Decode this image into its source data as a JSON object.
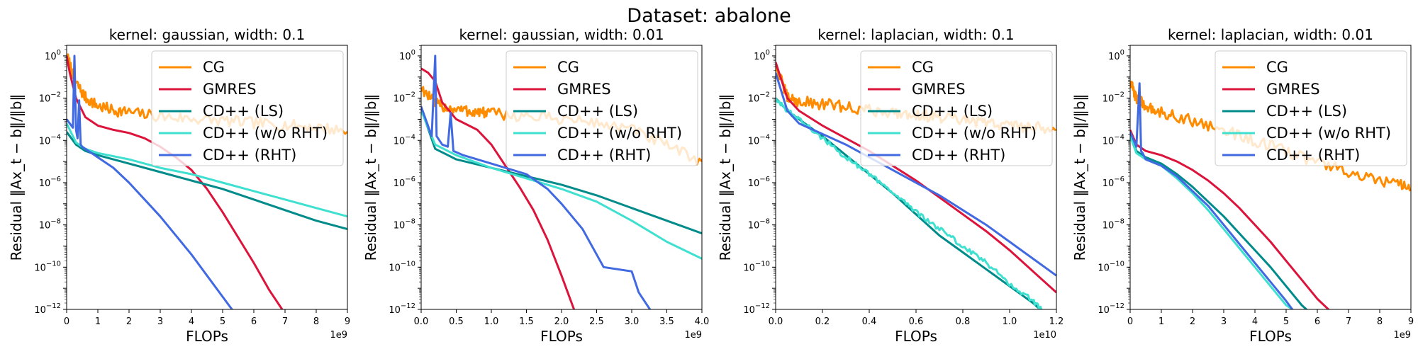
{
  "figure_title": "Dataset: abalone",
  "chart_data": [
    {
      "type": "line",
      "title": "kernel: gaussian, width: 0.1",
      "xlabel": "FLOPs",
      "ylabel": "Residual ‖Ax_t − b‖/‖b‖",
      "x_offset_label": "1e9",
      "yscale": "log",
      "xlim": [
        0,
        9
      ],
      "ylim_exp": [
        -12,
        0.5
      ],
      "x_ticks": [
        "0",
        "1",
        "2",
        "3",
        "4",
        "5",
        "6",
        "7",
        "8",
        "9"
      ],
      "legend": "top-right",
      "series": [
        {
          "name": "CG",
          "color": "#ff8c00",
          "noise": true,
          "x": [
            0,
            0.3,
            0.6,
            1.0,
            1.5,
            2.0,
            3.0,
            4.0,
            5.0,
            6.0,
            7.0,
            8.0,
            9.0
          ],
          "log10_y": [
            0,
            -1.3,
            -2.0,
            -2.4,
            -2.6,
            -2.7,
            -2.9,
            -3.0,
            -3.1,
            -3.2,
            -3.3,
            -3.4,
            -3.6
          ]
        },
        {
          "name": "GMRES",
          "color": "#dc143c",
          "x": [
            0,
            0.1,
            0.3,
            0.6,
            1.0,
            1.5,
            2.0,
            2.5,
            3.0,
            3.5,
            4.0,
            4.5,
            5.0,
            5.5,
            6.0,
            6.5,
            7.0
          ],
          "log10_y": [
            0,
            -0.8,
            -2.0,
            -2.9,
            -3.3,
            -3.5,
            -3.65,
            -3.9,
            -4.3,
            -4.8,
            -5.4,
            -6.3,
            -7.4,
            -8.6,
            -9.8,
            -11.1,
            -12.2
          ]
        },
        {
          "name": "CD++ (LS)",
          "color": "#008b8b",
          "x": [
            0,
            0.3,
            0.6,
            1.0,
            2.0,
            3.0,
            4.0,
            5.0,
            6.0,
            7.0,
            8.0,
            9.0
          ],
          "log10_y": [
            -3.6,
            -4.2,
            -4.5,
            -4.7,
            -5.1,
            -5.5,
            -5.9,
            -6.3,
            -6.8,
            -7.3,
            -7.8,
            -8.2
          ]
        },
        {
          "name": "CD++ (w/o RHT)",
          "color": "#40e0d0",
          "x": [
            0,
            0.3,
            0.6,
            1.0,
            2.0,
            3.0,
            4.0,
            5.0,
            6.0,
            7.0,
            8.0,
            9.0
          ],
          "log10_y": [
            -3.2,
            -4.1,
            -4.4,
            -4.6,
            -4.9,
            -5.3,
            -5.6,
            -6.0,
            -6.4,
            -6.8,
            -7.2,
            -7.6
          ]
        },
        {
          "name": "CD++ (RHT)",
          "color": "#4169e1",
          "x": [
            0,
            0.2,
            0.25,
            0.3,
            0.35,
            0.4,
            0.45,
            0.5,
            0.6,
            1.0,
            1.5,
            2.0,
            2.5,
            3.0,
            3.5,
            4.0,
            4.5,
            5.0,
            5.4
          ],
          "log10_y": [
            -3.0,
            -3.4,
            0.0,
            -3.5,
            -3.9,
            -2.1,
            -4.2,
            -4.3,
            -4.4,
            -4.8,
            -5.3,
            -6.0,
            -6.8,
            -7.6,
            -8.5,
            -9.4,
            -10.4,
            -11.4,
            -12.2
          ]
        }
      ]
    },
    {
      "type": "line",
      "title": "kernel: gaussian, width: 0.01",
      "xlabel": "FLOPs",
      "ylabel": "Residual ‖Ax_t − b‖/‖b‖",
      "x_offset_label": "1e9",
      "yscale": "log",
      "xlim": [
        0,
        4
      ],
      "ylim_exp": [
        -12,
        0.5
      ],
      "x_ticks": [
        "0.0",
        "0.5",
        "1.0",
        "1.5",
        "2.0",
        "2.5",
        "3.0",
        "3.5",
        "4.0"
      ],
      "legend": "top-right",
      "series": [
        {
          "name": "CG",
          "color": "#ff8c00",
          "noise": true,
          "x": [
            0,
            0.2,
            0.4,
            0.6,
            0.8,
            1.0,
            1.5,
            2.0,
            2.5,
            3.0,
            3.5,
            4.0
          ],
          "log10_y": [
            -1.5,
            -2.3,
            -2.5,
            -2.6,
            -2.7,
            -2.75,
            -2.9,
            -3.0,
            -3.2,
            -3.5,
            -4.3,
            -5.0
          ]
        },
        {
          "name": "GMRES",
          "color": "#dc143c",
          "x": [
            0,
            0.1,
            0.2,
            0.3,
            0.5,
            0.8,
            1.0,
            1.2,
            1.4,
            1.6,
            1.8,
            2.0,
            2.2
          ],
          "log10_y": [
            -0.6,
            -0.8,
            -1.2,
            -2.2,
            -3.0,
            -3.5,
            -4.2,
            -5.2,
            -6.2,
            -7.3,
            -8.7,
            -10.4,
            -12.2
          ]
        },
        {
          "name": "CD++ (LS)",
          "color": "#008b8b",
          "x": [
            0,
            0.2,
            0.5,
            1.0,
            1.5,
            2.0,
            2.5,
            3.0,
            3.5,
            4.0
          ],
          "log10_y": [
            -2.5,
            -4.4,
            -4.9,
            -5.3,
            -5.7,
            -6.1,
            -6.6,
            -7.2,
            -7.8,
            -8.4
          ]
        },
        {
          "name": "CD++ (w/o RHT)",
          "color": "#40e0d0",
          "x": [
            0,
            0.2,
            0.5,
            1.0,
            1.5,
            2.0,
            2.5,
            3.0,
            3.5,
            4.0
          ],
          "log10_y": [
            -2.6,
            -4.2,
            -4.7,
            -5.3,
            -5.8,
            -6.3,
            -6.9,
            -7.8,
            -8.8,
            -9.6
          ]
        },
        {
          "name": "CD++ (RHT)",
          "color": "#4169e1",
          "x": [
            0,
            0.15,
            0.2,
            0.22,
            0.3,
            0.38,
            0.42,
            0.46,
            0.6,
            1.0,
            1.5,
            1.8,
            2.0,
            2.3,
            2.6,
            3.0,
            3.1,
            3.3
          ],
          "log10_y": [
            -2.4,
            -3.8,
            0.0,
            -3.8,
            -4.2,
            -4.3,
            -2.7,
            -4.5,
            -4.7,
            -5.1,
            -5.6,
            -6.3,
            -7.0,
            -8.2,
            -10.0,
            -10.2,
            -11.2,
            -12.2
          ]
        }
      ]
    },
    {
      "type": "line",
      "title": "kernel: laplacian, width: 0.1",
      "xlabel": "FLOPs",
      "ylabel": "Residual ‖Ax_t − b‖/‖b‖",
      "x_offset_label": "1e10",
      "yscale": "log",
      "xlim": [
        0,
        1.2
      ],
      "ylim_exp": [
        -12,
        0.5
      ],
      "x_ticks": [
        "0.0",
        "0.2",
        "0.4",
        "0.6",
        "0.8",
        "1.0",
        "1.2"
      ],
      "legend": "top-right",
      "series": [
        {
          "name": "CG",
          "color": "#ff8c00",
          "noise": true,
          "x": [
            0,
            0.05,
            0.1,
            0.2,
            0.3,
            0.4,
            0.5,
            0.6,
            0.7,
            0.8,
            0.9,
            1.0,
            1.1,
            1.2
          ],
          "log10_y": [
            -0.5,
            -2.0,
            -2.2,
            -2.3,
            -2.45,
            -2.6,
            -2.7,
            -2.8,
            -2.95,
            -3.1,
            -3.2,
            -3.3,
            -3.4,
            -3.5
          ]
        },
        {
          "name": "GMRES",
          "color": "#dc143c",
          "x": [
            0,
            0.05,
            0.1,
            0.2,
            0.3,
            0.4,
            0.5,
            0.6,
            0.7,
            0.8,
            0.9,
            1.0,
            1.1,
            1.2
          ],
          "log10_y": [
            -0.3,
            -2.0,
            -2.6,
            -3.3,
            -3.9,
            -4.5,
            -5.2,
            -5.9,
            -6.7,
            -7.5,
            -8.3,
            -9.2,
            -10.2,
            -11.2
          ]
        },
        {
          "name": "CD++ (LS)",
          "color": "#008b8b",
          "x": [
            0,
            0.05,
            0.1,
            0.2,
            0.3,
            0.4,
            0.5,
            0.6,
            0.7,
            0.8,
            0.9,
            1.0,
            1.1,
            1.15
          ],
          "log10_y": [
            -2.0,
            -2.6,
            -3.0,
            -3.8,
            -4.7,
            -5.6,
            -6.5,
            -7.5,
            -8.5,
            -9.3,
            -10.1,
            -10.9,
            -11.7,
            -12.2
          ]
        },
        {
          "name": "CD++ (w/o RHT)",
          "color": "#40e0d0",
          "noise": true,
          "x": [
            0,
            0.05,
            0.1,
            0.2,
            0.3,
            0.4,
            0.5,
            0.6,
            0.7,
            0.8,
            0.9,
            1.0,
            1.1,
            1.15
          ],
          "log10_y": [
            -2.0,
            -2.6,
            -3.0,
            -3.9,
            -4.8,
            -5.6,
            -6.5,
            -7.4,
            -8.2,
            -9.0,
            -9.8,
            -10.8,
            -11.6,
            -12.2
          ]
        },
        {
          "name": "CD++ (RHT)",
          "color": "#4169e1",
          "x": [
            0,
            0.05,
            0.1,
            0.2,
            0.3,
            0.4,
            0.5,
            0.6,
            0.7,
            0.8,
            0.9,
            1.0,
            1.1,
            1.2
          ],
          "log10_y": [
            -0.8,
            -2.6,
            -3.2,
            -3.7,
            -4.2,
            -4.8,
            -5.4,
            -6.0,
            -6.6,
            -7.3,
            -8.0,
            -8.8,
            -9.6,
            -10.4
          ]
        }
      ]
    },
    {
      "type": "line",
      "title": "kernel: laplacian, width: 0.01",
      "xlabel": "FLOPs",
      "ylabel": "Residual ‖Ax_t − b‖/‖b‖",
      "x_offset_label": "1e9",
      "yscale": "log",
      "xlim": [
        0,
        9
      ],
      "ylim_exp": [
        -12,
        0.5
      ],
      "x_ticks": [
        "0",
        "1",
        "2",
        "3",
        "4",
        "5",
        "6",
        "7",
        "8",
        "9"
      ],
      "legend": "top-right",
      "series": [
        {
          "name": "CG",
          "color": "#ff8c00",
          "noise": true,
          "x": [
            0,
            0.2,
            0.4,
            0.8,
            1.5,
            2.5,
            3.5,
            4.5,
            5.5,
            6.5,
            7.5,
            8.5,
            9.0
          ],
          "log10_y": [
            -1.3,
            -2.0,
            -2.3,
            -2.6,
            -2.9,
            -3.3,
            -3.8,
            -4.3,
            -4.8,
            -5.3,
            -5.8,
            -6.1,
            -6.3
          ]
        },
        {
          "name": "GMRES",
          "color": "#dc143c",
          "x": [
            0,
            0.2,
            0.5,
            1.0,
            1.5,
            2.0,
            2.5,
            3.0,
            3.5,
            4.0,
            4.5,
            5.0,
            5.5,
            6.0,
            6.5
          ],
          "log10_y": [
            -3.5,
            -4.2,
            -4.5,
            -4.7,
            -5.0,
            -5.4,
            -5.9,
            -6.5,
            -7.2,
            -8.0,
            -8.8,
            -9.7,
            -10.6,
            -11.5,
            -12.2
          ]
        },
        {
          "name": "CD++ (LS)",
          "color": "#008b8b",
          "x": [
            0,
            0.2,
            0.5,
            1.0,
            1.5,
            2.0,
            2.5,
            3.0,
            3.5,
            4.0,
            4.5,
            5.0,
            5.5,
            5.8
          ],
          "log10_y": [
            -3.8,
            -4.5,
            -4.8,
            -5.1,
            -5.6,
            -6.2,
            -6.9,
            -7.6,
            -8.4,
            -9.2,
            -10.0,
            -10.9,
            -11.8,
            -12.2
          ]
        },
        {
          "name": "CD++ (w/o RHT)",
          "color": "#40e0d0",
          "x": [
            0,
            0.2,
            0.5,
            1.0,
            1.5,
            2.0,
            2.5,
            3.0,
            3.5,
            4.0,
            4.5,
            5.0,
            5.4
          ],
          "log10_y": [
            -3.8,
            -4.6,
            -4.9,
            -5.2,
            -5.8,
            -6.5,
            -7.3,
            -8.2,
            -9.1,
            -10.0,
            -10.9,
            -11.8,
            -12.2
          ]
        },
        {
          "name": "CD++ (RHT)",
          "color": "#4169e1",
          "x": [
            0,
            0.2,
            0.3,
            0.35,
            0.4,
            0.5,
            1.0,
            1.5,
            2.0,
            2.5,
            3.0,
            3.5,
            4.0,
            4.5,
            5.0,
            5.3
          ],
          "log10_y": [
            -3.6,
            -4.3,
            -1.3,
            -4.5,
            -4.6,
            -4.9,
            -5.2,
            -5.7,
            -6.4,
            -7.1,
            -8.0,
            -8.9,
            -9.8,
            -10.7,
            -11.6,
            -12.2
          ]
        }
      ]
    }
  ]
}
